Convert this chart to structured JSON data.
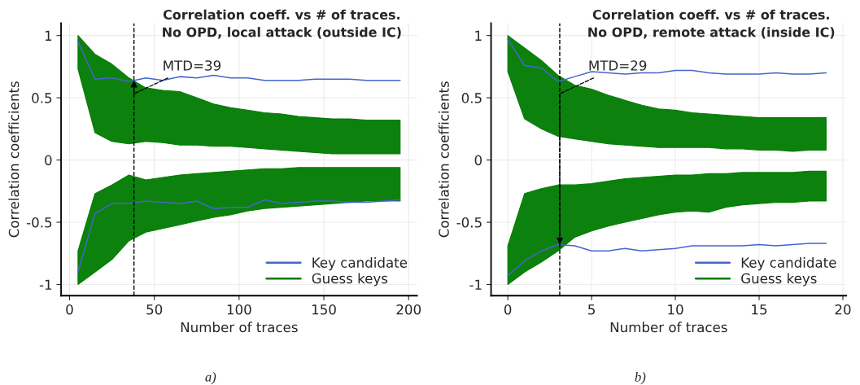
{
  "chart_data": [
    {
      "type": "line",
      "title": "Correlation coeff. vs # of traces.\nNo OPD, local attack (outside IC)",
      "xlabel": "Number of traces",
      "ylabel": "Correlation coefficients",
      "x": [
        5,
        15,
        25,
        35,
        45,
        55,
        65,
        75,
        85,
        95,
        105,
        115,
        125,
        135,
        145,
        155,
        165,
        175,
        185,
        195
      ],
      "series": [
        {
          "name": "Key candidate",
          "color": "#4466cc",
          "values": [
            0.95,
            0.65,
            0.66,
            0.63,
            0.66,
            0.64,
            0.67,
            0.66,
            0.68,
            0.66,
            0.66,
            0.64,
            0.64,
            0.64,
            0.65,
            0.65,
            0.65,
            0.64,
            0.64,
            0.64
          ]
        },
        {
          "color": "#4466cc",
          "values": [
            -0.9,
            -0.43,
            -0.35,
            -0.35,
            -0.33,
            -0.34,
            -0.35,
            -0.33,
            -0.39,
            -0.38,
            -0.38,
            -0.32,
            -0.35,
            -0.34,
            -0.33,
            -0.33,
            -0.34,
            -0.34,
            -0.33,
            -0.32
          ]
        },
        {
          "name": "Guess keys",
          "color": "#007a00",
          "values": [
            null,
            null,
            null,
            null,
            null,
            null,
            null,
            null,
            null,
            null,
            null,
            null,
            null,
            null,
            null,
            null,
            null,
            null,
            null,
            null
          ],
          "upper": [
            1.0,
            0.85,
            0.77,
            0.66,
            0.58,
            0.56,
            0.55,
            0.5,
            0.45,
            0.42,
            0.4,
            0.38,
            0.37,
            0.35,
            0.34,
            0.33,
            0.33,
            0.32,
            0.32,
            0.32
          ],
          "lower": [
            0.73,
            0.22,
            0.15,
            0.13,
            0.15,
            0.14,
            0.12,
            0.12,
            0.11,
            0.11,
            0.1,
            0.09,
            0.08,
            0.07,
            0.06,
            0.05,
            0.05,
            0.05,
            0.05,
            0.05
          ]
        },
        {
          "color": "#007a00",
          "values": [
            null,
            null,
            null,
            null,
            null,
            null,
            null,
            null,
            null,
            null,
            null,
            null,
            null,
            null,
            null,
            null,
            null,
            null,
            null,
            null
          ],
          "upper": [
            -0.73,
            -0.27,
            -0.2,
            -0.12,
            -0.16,
            -0.14,
            -0.12,
            -0.11,
            -0.1,
            -0.09,
            -0.08,
            -0.07,
            -0.07,
            -0.06,
            -0.06,
            -0.06,
            -0.06,
            -0.06,
            -0.06,
            -0.06
          ],
          "lower": [
            -1.0,
            -0.9,
            -0.8,
            -0.65,
            -0.58,
            -0.55,
            -0.52,
            -0.49,
            -0.46,
            -0.44,
            -0.41,
            -0.39,
            -0.38,
            -0.37,
            -0.36,
            -0.35,
            -0.34,
            -0.33,
            -0.33,
            -0.33
          ]
        }
      ],
      "xlim": [
        -5,
        205
      ],
      "xticks": [
        0,
        50,
        100,
        150,
        200
      ],
      "ylim": [
        -1.09,
        1.1
      ],
      "yticks": [
        -1,
        -0.5,
        0,
        0.5,
        1
      ],
      "ref_lines": [
        {
          "axis": "x",
          "value": 38,
          "color": "#000000",
          "line_style": "dashed"
        }
      ],
      "annotations": [
        {
          "text": "MTD=39",
          "x": 38,
          "y": 0.64
        },
        "a)"
      ],
      "grid": true,
      "legend": "bottom right"
    },
    {
      "type": "line",
      "title": "Correlation coeff. vs # of traces.\nNo OPD, remote attack (inside IC)",
      "xlabel": "Number of traces",
      "ylabel": "Correlation coefficients",
      "x": [
        0,
        1,
        2,
        3,
        4,
        5,
        6,
        7,
        8,
        9,
        10,
        11,
        12,
        13,
        14,
        15,
        16,
        17,
        18,
        19
      ],
      "series": [
        {
          "name": "Key candidate",
          "color": "#4466cc",
          "values": [
            0.97,
            0.76,
            0.74,
            0.63,
            0.67,
            0.71,
            0.7,
            0.69,
            0.7,
            0.7,
            0.72,
            0.72,
            0.7,
            0.69,
            0.69,
            0.69,
            0.7,
            0.69,
            0.69,
            0.7
          ]
        },
        {
          "color": "#4466cc",
          "values": [
            -0.93,
            -0.81,
            -0.73,
            -0.68,
            -0.69,
            -0.73,
            -0.73,
            -0.71,
            -0.73,
            -0.72,
            -0.71,
            -0.69,
            -0.69,
            -0.69,
            -0.69,
            -0.68,
            -0.69,
            -0.68,
            -0.67,
            -0.67
          ]
        },
        {
          "name": "Guess keys",
          "color": "#007a00",
          "values": [
            null,
            null,
            null,
            null,
            null,
            null,
            null,
            null,
            null,
            null,
            null,
            null,
            null,
            null,
            null,
            null,
            null,
            null,
            null,
            null
          ],
          "upper": [
            1.0,
            0.9,
            0.8,
            0.68,
            0.6,
            0.57,
            0.52,
            0.48,
            0.44,
            0.41,
            0.4,
            0.38,
            0.37,
            0.36,
            0.35,
            0.34,
            0.34,
            0.34,
            0.34,
            0.34
          ],
          "lower": [
            0.71,
            0.33,
            0.25,
            0.19,
            0.17,
            0.15,
            0.13,
            0.12,
            0.11,
            0.1,
            0.1,
            0.1,
            0.1,
            0.09,
            0.09,
            0.08,
            0.08,
            0.07,
            0.08,
            0.08
          ]
        },
        {
          "color": "#007a00",
          "values": [
            null,
            null,
            null,
            null,
            null,
            null,
            null,
            null,
            null,
            null,
            null,
            null,
            null,
            null,
            null,
            null,
            null,
            null,
            null,
            null
          ],
          "upper": [
            -0.69,
            -0.27,
            -0.23,
            -0.2,
            -0.2,
            -0.19,
            -0.17,
            -0.15,
            -0.14,
            -0.13,
            -0.12,
            -0.12,
            -0.11,
            -0.11,
            -0.1,
            -0.1,
            -0.1,
            -0.1,
            -0.09,
            -0.09
          ],
          "lower": [
            -1.0,
            -0.9,
            -0.82,
            -0.73,
            -0.62,
            -0.57,
            -0.53,
            -0.5,
            -0.47,
            -0.44,
            -0.42,
            -0.41,
            -0.42,
            -0.38,
            -0.36,
            -0.35,
            -0.34,
            -0.34,
            -0.33,
            -0.33
          ]
        }
      ],
      "xlim": [
        -1,
        20.2
      ],
      "xticks": [
        0,
        5,
        10,
        15,
        20
      ],
      "ylim": [
        -1.09,
        1.1
      ],
      "yticks": [
        -1,
        -0.5,
        0,
        0.5,
        1
      ],
      "ref_lines": [
        {
          "axis": "x",
          "value": 3.1,
          "color": "#000000",
          "line_style": "dashed"
        }
      ],
      "annotations": [
        {
          "text": "MTD=29",
          "x": 3.1,
          "y": -0.68
        },
        "b)"
      ],
      "grid": true,
      "legend": "bottom right"
    }
  ]
}
